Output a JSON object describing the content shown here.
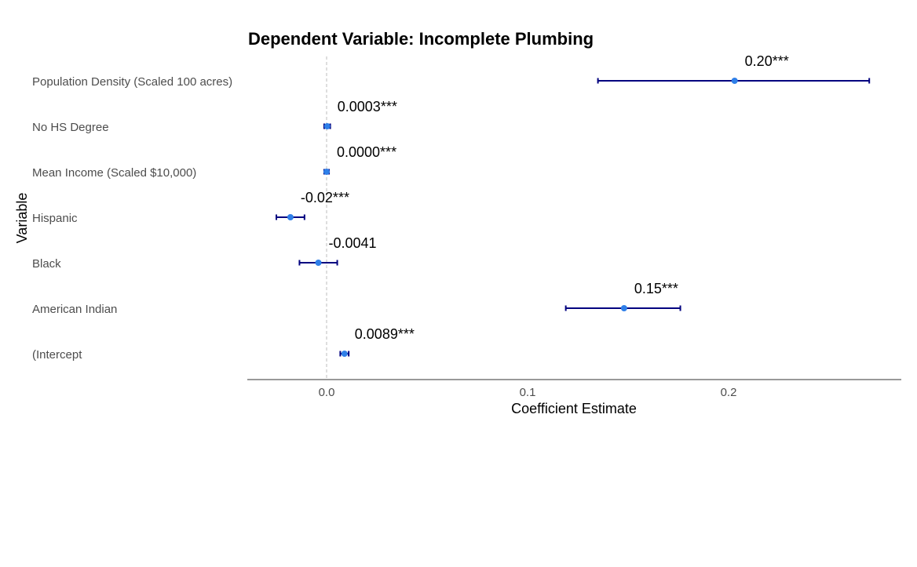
{
  "chart_data": {
    "type": "scatter",
    "title": "Dependent Variable: Incomplete Plumbing",
    "xlabel": "Coefficient Estimate",
    "ylabel": "Variable",
    "xlim": [
      -0.04,
      0.285
    ],
    "x_ticks": [
      0.0,
      0.1,
      0.2
    ],
    "x_tick_labels": [
      "0.0",
      "0.1",
      "0.2"
    ],
    "reference_line": 0,
    "grid": false,
    "legend": "none",
    "colors": {
      "point": "#2f7fe8",
      "errorbar": "#00007f",
      "reference_line": "#bdbdbd",
      "axis": "#333333"
    },
    "points": [
      {
        "variable": "Population Density (Scaled 100 acres)",
        "estimate": 0.203,
        "ci_low": 0.135,
        "ci_high": 0.27,
        "label": "0.20***"
      },
      {
        "variable": "No HS Degree",
        "estimate": 0.0003,
        "ci_low": -0.0012,
        "ci_high": 0.0018,
        "label": "0.0003***"
      },
      {
        "variable": "Mean Income (Scaled $10,000)",
        "estimate": 0.0,
        "ci_low": -0.0012,
        "ci_high": 0.0012,
        "label": "0.0000***"
      },
      {
        "variable": "Hispanic",
        "estimate": -0.018,
        "ci_low": -0.025,
        "ci_high": -0.011,
        "label": "-0.02***"
      },
      {
        "variable": "Black",
        "estimate": -0.0041,
        "ci_low": -0.0135,
        "ci_high": 0.0053,
        "label": "-0.0041"
      },
      {
        "variable": "American Indian",
        "estimate": 0.148,
        "ci_low": 0.119,
        "ci_high": 0.176,
        "label": "0.15***"
      },
      {
        "variable": "(Intercept",
        "estimate": 0.0089,
        "ci_low": 0.0068,
        "ci_high": 0.011,
        "label": "0.0089***"
      }
    ]
  }
}
